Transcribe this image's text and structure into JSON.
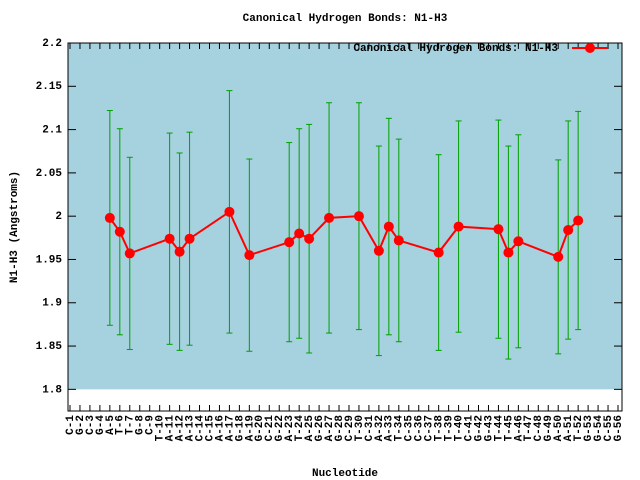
{
  "chart_data": {
    "type": "errorline",
    "title": "Canonical Hydrogen Bonds: N1-H3",
    "x_label": "Nucleotide",
    "y_label": "N1-H3 (Angstroms)",
    "categories": [
      "C-1",
      "G-2",
      "C-3",
      "G-4",
      "A-5",
      "T-6",
      "T-7",
      "G-8",
      "C-9",
      "T-10",
      "A-11",
      "A-12",
      "A-13",
      "C-14",
      "C-15",
      "A-16",
      "A-17",
      "G-18",
      "A-19",
      "G-20",
      "C-21",
      "G-22",
      "A-23",
      "T-24",
      "A-25",
      "G-26",
      "A-27",
      "G-28",
      "C-29",
      "T-30",
      "C-31",
      "A-32",
      "A-33",
      "T-34",
      "C-35",
      "C-36",
      "C-37",
      "T-38",
      "T-39",
      "T-40",
      "C-41",
      "G-42",
      "G-43",
      "T-44",
      "T-45",
      "A-46",
      "T-47",
      "C-48",
      "G-49",
      "A-50",
      "A-51",
      "T-52",
      "G-53",
      "G-54",
      "C-55",
      "G-56"
    ],
    "series": [
      {
        "name": "Canonical Hydrogen Bonds: N1-H3",
        "color": "#ff0000",
        "error_color": "#00a000",
        "x": [
          "A-5",
          "T-6",
          "T-7",
          "A-11",
          "A-12",
          "A-13",
          "A-17",
          "A-19",
          "A-23",
          "T-24",
          "A-25",
          "A-27",
          "T-30",
          "A-32",
          "A-33",
          "T-34",
          "T-38",
          "T-40",
          "T-44",
          "T-45",
          "A-46",
          "A-50",
          "A-51",
          "T-52"
        ],
        "values": [
          1.998,
          1.982,
          1.957,
          1.974,
          1.959,
          1.974,
          2.005,
          1.955,
          1.97,
          1.98,
          1.974,
          1.998,
          2.0,
          1.96,
          1.988,
          1.972,
          1.958,
          1.988,
          1.985,
          1.958,
          1.971,
          1.953,
          1.984,
          1.995
        ],
        "errors": [
          0.124,
          0.119,
          0.111,
          0.122,
          0.114,
          0.123,
          0.14,
          0.111,
          0.115,
          0.121,
          0.132,
          0.133,
          0.131,
          0.121,
          0.125,
          0.117,
          0.113,
          0.122,
          0.126,
          0.123,
          0.123,
          0.112,
          0.126,
          0.126
        ]
      }
    ],
    "ylim": [
      1.775,
      2.2
    ],
    "yticks": [
      1.8,
      1.85,
      1.9,
      1.95,
      2,
      2.05,
      2.1,
      2.15,
      2.2
    ],
    "background": "#a6d1df",
    "legend": "top-right"
  }
}
